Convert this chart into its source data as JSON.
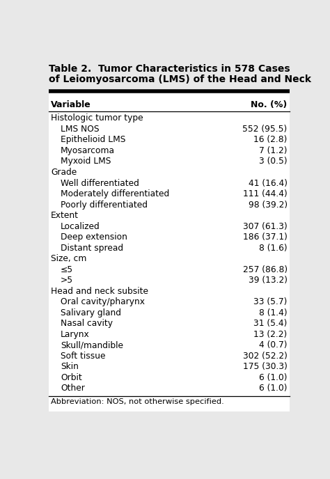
{
  "title_line1": "Table 2.  Tumor Characteristics in 578 Cases",
  "title_line2": "of Leiomyosarcoma (LMS) of the Head and Neck",
  "col1_header": "Variable",
  "col2_header": "No. (%)",
  "rows": [
    {
      "label": "Histologic tumor type",
      "value": "",
      "indent": 0
    },
    {
      "label": "LMS NOS",
      "value": "552 (95.5)",
      "indent": 1
    },
    {
      "label": "Epithelioid LMS",
      "value": "16 (2.8)",
      "indent": 1
    },
    {
      "label": "Myosarcoma",
      "value": "7 (1.2)",
      "indent": 1
    },
    {
      "label": "Myxoid LMS",
      "value": "3 (0.5)",
      "indent": 1
    },
    {
      "label": "Grade",
      "value": "",
      "indent": 0
    },
    {
      "label": "Well differentiated",
      "value": "41 (16.4)",
      "indent": 1
    },
    {
      "label": "Moderately differentiated",
      "value": "111 (44.4)",
      "indent": 1
    },
    {
      "label": "Poorly differentiated",
      "value": "98 (39.2)",
      "indent": 1
    },
    {
      "label": "Extent",
      "value": "",
      "indent": 0
    },
    {
      "label": "Localized",
      "value": "307 (61.3)",
      "indent": 1
    },
    {
      "label": "Deep extension",
      "value": "186 (37.1)",
      "indent": 1
    },
    {
      "label": "Distant spread",
      "value": "8 (1.6)",
      "indent": 1
    },
    {
      "label": "Size, cm",
      "value": "",
      "indent": 0
    },
    {
      "label": "≤5",
      "value": "257 (86.8)",
      "indent": 1
    },
    {
      "label": ">5",
      "value": "39 (13.2)",
      "indent": 1
    },
    {
      "label": "Head and neck subsite",
      "value": "",
      "indent": 0
    },
    {
      "label": "Oral cavity/pharynx",
      "value": "33 (5.7)",
      "indent": 1
    },
    {
      "label": "Salivary gland",
      "value": "8 (1.4)",
      "indent": 1
    },
    {
      "label": "Nasal cavity",
      "value": "31 (5.4)",
      "indent": 1
    },
    {
      "label": "Larynx",
      "value": "13 (2.2)",
      "indent": 1
    },
    {
      "label": "Skull/mandible",
      "value": "4 (0.7)",
      "indent": 1
    },
    {
      "label": "Soft tissue",
      "value": "302 (52.2)",
      "indent": 1
    },
    {
      "label": "Skin",
      "value": "175 (30.3)",
      "indent": 1
    },
    {
      "label": "Orbit",
      "value": "6 (1.0)",
      "indent": 1
    },
    {
      "label": "Other",
      "value": "6 (1.0)",
      "indent": 1
    }
  ],
  "footnote": "Abbreviation: NOS, not otherwise specified.",
  "bg_color": "#e8e8e8",
  "font_size": 8.8,
  "title_font_size": 10.0,
  "header_font_size": 9.0
}
